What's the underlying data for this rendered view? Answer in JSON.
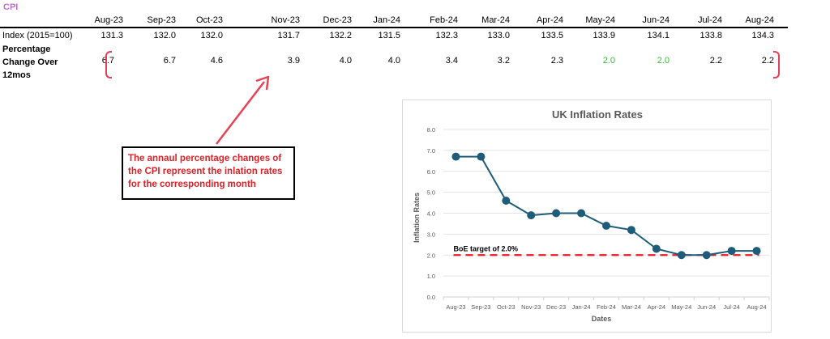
{
  "table": {
    "title": "CPI",
    "months": [
      "Aug-23",
      "Sep-23",
      "Oct-23",
      "Nov-23",
      "Dec-23",
      "Jan-24",
      "Feb-24",
      "Mar-24",
      "Apr-24",
      "May-24",
      "Jun-24",
      "Jul-24",
      "Aug-24"
    ],
    "index_label": "Index (2015=100)",
    "index_values": [
      "131.3",
      "132.0",
      "132.0",
      "131.7",
      "132.2",
      "131.5",
      "132.3",
      "133.0",
      "133.5",
      "133.9",
      "134.1",
      "133.8",
      "134.3"
    ],
    "pct_label_lines": [
      "Percentage",
      "Change Over",
      "12mos"
    ],
    "pct_values": [
      "6.7",
      "6.7",
      "4.6",
      "3.9",
      "4.0",
      "4.0",
      "3.4",
      "3.2",
      "2.3",
      "2.0",
      "2.0",
      "2.2",
      "2.2"
    ],
    "highlight_color": "#3cb83c",
    "highlighted": [
      "May-24",
      "Jun-24"
    ]
  },
  "annotation": {
    "text": "The annaul percentage changes of the CPI represent the inlation rates for the corresponding month",
    "color": "#e01f26"
  },
  "chart_data": {
    "type": "line",
    "title": "UK Inflation Rates",
    "xlabel": "Dates",
    "ylabel": "Inflation Rates",
    "categories": [
      "Aug-23",
      "Sep-23",
      "Oct-23",
      "Nov-23",
      "Dec-23",
      "Jan-24",
      "Feb-24",
      "Mar-24",
      "Apr-24",
      "May-24",
      "Jun-24",
      "Jul-24",
      "Aug-24"
    ],
    "series": [
      {
        "name": "Inflation Rate",
        "values": [
          6.7,
          6.7,
          4.6,
          3.9,
          4.0,
          4.0,
          3.4,
          3.2,
          2.3,
          2.0,
          2.0,
          2.2,
          2.2
        ],
        "color": "#1f5c7a"
      }
    ],
    "reference_line": {
      "label": "BoE target of 2.0%",
      "value": 2.0,
      "color": "#e01f26",
      "style": "dashed"
    },
    "ylim": [
      0,
      8
    ],
    "yticks": [
      "0.0",
      "1.0",
      "2.0",
      "3.0",
      "4.0",
      "5.0",
      "6.0",
      "7.0",
      "8.0"
    ],
    "grid": true,
    "legend": "none"
  }
}
